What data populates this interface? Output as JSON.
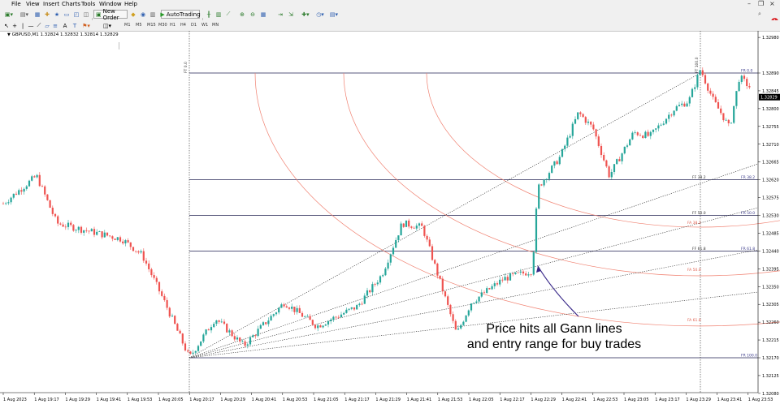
{
  "menu": [
    "File",
    "View",
    "Insert",
    "Charts",
    "Tools",
    "Window",
    "Help"
  ],
  "toolbar": {
    "new_order": "New Order",
    "autotrading": "AutoTrading",
    "notification_count": "1"
  },
  "timeframes": [
    "M1",
    "M5",
    "M15",
    "M30",
    "H1",
    "H4",
    "D1",
    "W1",
    "MN"
  ],
  "chart": {
    "symbol_line": "GBPUSD,M1  1.32824 1.32832 1.32814 1.32829",
    "current_price": "1.32829",
    "price_labels": [
      "1.32980",
      "1.32890",
      "1.32845",
      "1.32800",
      "1.32755",
      "1.32710",
      "1.32665",
      "1.32620",
      "1.32575",
      "1.32530",
      "1.32485",
      "1.32440",
      "1.32395",
      "1.32350",
      "1.32305",
      "1.32260",
      "1.32215",
      "1.32170",
      "1.32125",
      "1.32080"
    ],
    "time_labels": [
      "1 Aug 2023",
      "1 Aug 19:17",
      "1 Aug 19:29",
      "1 Aug 19:41",
      "1 Aug 19:53",
      "1 Aug 20:05",
      "1 Aug 20:17",
      "1 Aug 20:29",
      "1 Aug 20:41",
      "1 Aug 20:53",
      "1 Aug 21:05",
      "1 Aug 21:17",
      "1 Aug 21:29",
      "1 Aug 21:41",
      "1 Aug 21:53",
      "1 Aug 22:05",
      "1 Aug 22:17",
      "1 Aug 22:29",
      "1 Aug 22:41",
      "1 Aug 22:53",
      "1 Aug 23:05",
      "1 Aug 23:17",
      "1 Aug 23:29",
      "1 Aug 23:41",
      "1 Aug 23:53"
    ],
    "fib_levels": [
      {
        "level": "0.0",
        "price": 1.3289,
        "right_label": "FR 0.0"
      },
      {
        "level": "38.2",
        "price": 1.3262,
        "right_label": "FR 38.2",
        "fan_label": "FF 38.2"
      },
      {
        "level": "50.0",
        "price": 1.3253,
        "right_label": "FR 50.0",
        "fan_label": "FF 50.0"
      },
      {
        "level": "61.8",
        "price": 1.3244,
        "right_label": "FR 61.8",
        "fan_label": "FF 61.8"
      },
      {
        "level": "100.0",
        "price": 1.3217,
        "right_label": "FR 100.0"
      }
    ],
    "ft_labels": [
      "FT 0.0",
      "FT 100.0"
    ],
    "fa_labels": [
      "FA 38.2",
      "FA 50.0",
      "FA 61.8"
    ],
    "annotation_line1": "Price hits all Gann lines",
    "annotation_line2": "and entry range for buy trades",
    "colors": {
      "bull": "#26a69a",
      "bear": "#ef5350",
      "fib": "#202050",
      "arc": "#f08070",
      "arrow": "#3a2a8a",
      "label": "#3a3a8a",
      "arc_label": "#e06050"
    }
  }
}
